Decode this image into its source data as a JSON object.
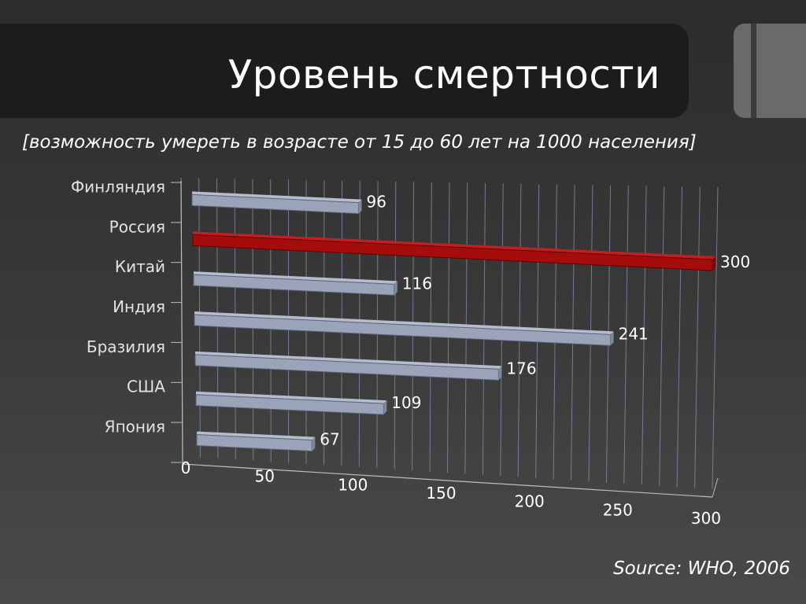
{
  "slide": {
    "title": "Уровень смертности",
    "subtitle": "[возможность умереть в возрасте от 15 до 60 лет на 1000 населения]",
    "source": "Source: WHO, 2006"
  },
  "colors": {
    "bar": "#9aa3b8",
    "highlight_bar": "#a50d0d",
    "grid": "#8d8fb0"
  },
  "chart_data": {
    "type": "bar",
    "orientation": "horizontal",
    "three_d": true,
    "categories": [
      "Финляндия",
      "Россия",
      "Китай",
      "Индия",
      "Бразилия",
      "США",
      "Япония"
    ],
    "values": [
      96,
      300,
      116,
      241,
      176,
      109,
      67
    ],
    "highlight_category": "Россия",
    "xlim": [
      0,
      300
    ],
    "xticks": [
      0,
      50,
      100,
      150,
      200,
      250,
      300
    ],
    "grid": true,
    "legend": "none"
  }
}
